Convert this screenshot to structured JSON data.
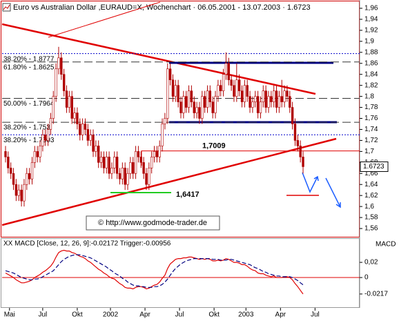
{
  "chart_data": [
    {
      "type": "candlestick",
      "title": "Euro vs Australian Dollar ,EURAUD=X, Wochenchart · 06.05.2001 - 13.07.2003 · 1.6723",
      "up_color": "#ffffff",
      "down_color": "#b00000",
      "xlim": [
        -1.3,
        133.3
      ],
      "ylim": [
        1.545,
        1.9713
      ],
      "yticks": [
        {
          "value": 1.96,
          "label": "1,96"
        },
        {
          "value": 1.94,
          "label": "1,94"
        },
        {
          "value": 1.92,
          "label": "1,92"
        },
        {
          "value": 1.9,
          "label": "1,9"
        },
        {
          "value": 1.88,
          "label": "1,88"
        },
        {
          "value": 1.86,
          "label": "1,86"
        },
        {
          "value": 1.84,
          "label": "1,84"
        },
        {
          "value": 1.82,
          "label": "1,82"
        },
        {
          "value": 1.8,
          "label": "1,8"
        },
        {
          "value": 1.78,
          "label": "1,78"
        },
        {
          "value": 1.76,
          "label": "1,76"
        },
        {
          "value": 1.74,
          "label": "1,74"
        },
        {
          "value": 1.72,
          "label": "1,72"
        },
        {
          "value": 1.7,
          "label": "1,7"
        },
        {
          "value": 1.68,
          "label": "1,68"
        },
        {
          "value": 1.66,
          "label": "1,66"
        },
        {
          "value": 1.64,
          "label": "1,64"
        },
        {
          "value": 1.62,
          "label": "1,62"
        },
        {
          "value": 1.6,
          "label": "1,6"
        },
        {
          "value": 1.58,
          "label": "1,58"
        },
        {
          "value": 1.56,
          "label": "1,56"
        }
      ],
      "levels": [
        {
          "value": 1.8777,
          "label": "38.20% - 1.8777",
          "dash": "dotted"
        },
        {
          "value": 1.8625,
          "label": "61.80% - 1.8625",
          "dash": "dashed"
        },
        {
          "value": 1.7964,
          "label": "50.00% - 1.7964",
          "dash": "dashed"
        },
        {
          "value": 1.753,
          "label": "38.20% - 1.753",
          "dash": "dashed"
        },
        {
          "value": 1.7303,
          "label": "38.20% - 1.7303",
          "dash": "dotted"
        }
      ],
      "break_level": {
        "value": 1.7009,
        "label": "1,7009",
        "color": "#e00000"
      },
      "low_label": "1,6417",
      "last_label": "1.6723",
      "copyright": "© http://www.godmode-trader.de",
      "candles": [
        [
          1.7,
          1.71,
          1.68,
          1.69
        ],
        [
          1.69,
          1.7,
          1.66,
          1.67
        ],
        [
          1.67,
          1.68,
          1.65,
          1.66
        ],
        [
          1.66,
          1.67,
          1.63,
          1.64
        ],
        [
          1.64,
          1.65,
          1.61,
          1.62
        ],
        [
          1.62,
          1.64,
          1.61,
          1.63
        ],
        [
          1.63,
          1.64,
          1.6,
          1.61
        ],
        [
          1.61,
          1.65,
          1.6,
          1.64
        ],
        [
          1.64,
          1.67,
          1.63,
          1.66
        ],
        [
          1.66,
          1.67,
          1.64,
          1.65
        ],
        [
          1.65,
          1.69,
          1.64,
          1.68
        ],
        [
          1.68,
          1.71,
          1.67,
          1.7
        ],
        [
          1.7,
          1.71,
          1.68,
          1.69
        ],
        [
          1.69,
          1.72,
          1.68,
          1.71
        ],
        [
          1.71,
          1.74,
          1.7,
          1.73
        ],
        [
          1.73,
          1.74,
          1.71,
          1.72
        ],
        [
          1.72,
          1.75,
          1.71,
          1.74
        ],
        [
          1.74,
          1.77,
          1.73,
          1.76
        ],
        [
          1.76,
          1.81,
          1.75,
          1.8
        ],
        [
          1.8,
          1.86,
          1.79,
          1.85
        ],
        [
          1.85,
          1.89,
          1.84,
          1.87
        ],
        [
          1.87,
          1.88,
          1.83,
          1.84
        ],
        [
          1.84,
          1.85,
          1.8,
          1.81
        ],
        [
          1.81,
          1.82,
          1.77,
          1.78
        ],
        [
          1.78,
          1.81,
          1.77,
          1.8
        ],
        [
          1.8,
          1.81,
          1.75,
          1.76
        ],
        [
          1.76,
          1.78,
          1.75,
          1.77
        ],
        [
          1.77,
          1.78,
          1.74,
          1.75
        ],
        [
          1.75,
          1.76,
          1.72,
          1.73
        ],
        [
          1.73,
          1.76,
          1.72,
          1.75
        ],
        [
          1.75,
          1.76,
          1.73,
          1.74
        ],
        [
          1.74,
          1.75,
          1.71,
          1.72
        ],
        [
          1.72,
          1.74,
          1.71,
          1.73
        ],
        [
          1.73,
          1.74,
          1.69,
          1.7
        ],
        [
          1.7,
          1.72,
          1.69,
          1.71
        ],
        [
          1.71,
          1.72,
          1.67,
          1.68
        ],
        [
          1.68,
          1.7,
          1.67,
          1.69
        ],
        [
          1.69,
          1.7,
          1.66,
          1.67
        ],
        [
          1.67,
          1.7,
          1.66,
          1.69
        ],
        [
          1.69,
          1.7,
          1.65,
          1.66
        ],
        [
          1.66,
          1.68,
          1.65,
          1.67
        ],
        [
          1.67,
          1.7,
          1.66,
          1.69
        ],
        [
          1.69,
          1.7,
          1.65,
          1.66
        ],
        [
          1.66,
          1.67,
          1.64,
          1.65
        ],
        [
          1.65,
          1.68,
          1.64,
          1.67
        ],
        [
          1.67,
          1.68,
          1.63,
          1.64
        ],
        [
          1.64,
          1.67,
          1.63,
          1.66
        ],
        [
          1.66,
          1.69,
          1.65,
          1.68
        ],
        [
          1.68,
          1.69,
          1.65,
          1.66
        ],
        [
          1.66,
          1.71,
          1.65,
          1.7
        ],
        [
          1.7,
          1.71,
          1.68,
          1.69
        ],
        [
          1.69,
          1.7,
          1.67,
          1.68
        ],
        [
          1.68,
          1.69,
          1.65,
          1.66
        ],
        [
          1.66,
          1.67,
          1.63,
          1.64
        ],
        [
          1.64,
          1.68,
          1.63,
          1.67
        ],
        [
          1.67,
          1.7,
          1.66,
          1.69
        ],
        [
          1.69,
          1.71,
          1.68,
          1.7
        ],
        [
          1.7,
          1.71,
          1.68,
          1.69
        ],
        [
          1.69,
          1.72,
          1.68,
          1.71
        ],
        [
          1.71,
          1.76,
          1.7,
          1.75
        ],
        [
          1.75,
          1.77,
          1.74,
          1.76
        ],
        [
          1.76,
          1.86,
          1.75,
          1.85
        ],
        [
          1.85,
          1.86,
          1.82,
          1.83
        ],
        [
          1.83,
          1.84,
          1.79,
          1.8
        ],
        [
          1.8,
          1.83,
          1.79,
          1.82
        ],
        [
          1.82,
          1.83,
          1.78,
          1.79
        ],
        [
          1.79,
          1.8,
          1.76,
          1.77
        ],
        [
          1.77,
          1.81,
          1.76,
          1.8
        ],
        [
          1.8,
          1.81,
          1.77,
          1.78
        ],
        [
          1.78,
          1.82,
          1.77,
          1.81
        ],
        [
          1.81,
          1.82,
          1.78,
          1.79
        ],
        [
          1.79,
          1.8,
          1.76,
          1.77
        ],
        [
          1.77,
          1.79,
          1.76,
          1.78
        ],
        [
          1.78,
          1.79,
          1.75,
          1.76
        ],
        [
          1.76,
          1.81,
          1.75,
          1.8
        ],
        [
          1.8,
          1.81,
          1.77,
          1.78
        ],
        [
          1.78,
          1.82,
          1.77,
          1.81
        ],
        [
          1.81,
          1.82,
          1.78,
          1.79
        ],
        [
          1.79,
          1.8,
          1.76,
          1.77
        ],
        [
          1.77,
          1.81,
          1.76,
          1.8
        ],
        [
          1.8,
          1.83,
          1.79,
          1.82
        ],
        [
          1.82,
          1.83,
          1.8,
          1.81
        ],
        [
          1.81,
          1.85,
          1.8,
          1.84
        ],
        [
          1.84,
          1.88,
          1.83,
          1.86
        ],
        [
          1.86,
          1.87,
          1.82,
          1.83
        ],
        [
          1.83,
          1.84,
          1.81,
          1.82
        ],
        [
          1.82,
          1.83,
          1.79,
          1.8
        ],
        [
          1.8,
          1.86,
          1.79,
          1.83
        ],
        [
          1.83,
          1.84,
          1.8,
          1.81
        ],
        [
          1.81,
          1.82,
          1.78,
          1.79
        ],
        [
          1.79,
          1.83,
          1.78,
          1.82
        ],
        [
          1.82,
          1.83,
          1.79,
          1.8
        ],
        [
          1.8,
          1.81,
          1.77,
          1.78
        ],
        [
          1.78,
          1.8,
          1.77,
          1.79
        ],
        [
          1.79,
          1.81,
          1.78,
          1.8
        ],
        [
          1.8,
          1.81,
          1.76,
          1.77
        ],
        [
          1.77,
          1.8,
          1.76,
          1.79
        ],
        [
          1.79,
          1.82,
          1.78,
          1.81
        ],
        [
          1.81,
          1.82,
          1.77,
          1.78
        ],
        [
          1.78,
          1.81,
          1.77,
          1.8
        ],
        [
          1.8,
          1.81,
          1.78,
          1.79
        ],
        [
          1.79,
          1.82,
          1.78,
          1.81
        ],
        [
          1.81,
          1.82,
          1.77,
          1.78
        ],
        [
          1.78,
          1.81,
          1.77,
          1.8
        ],
        [
          1.8,
          1.83,
          1.78,
          1.79
        ],
        [
          1.79,
          1.82,
          1.78,
          1.81
        ],
        [
          1.81,
          1.82,
          1.79,
          1.8
        ],
        [
          1.8,
          1.81,
          1.77,
          1.78
        ],
        [
          1.78,
          1.79,
          1.74,
          1.75
        ],
        [
          1.75,
          1.76,
          1.71,
          1.72
        ],
        [
          1.72,
          1.73,
          1.7,
          1.71
        ],
        [
          1.71,
          1.72,
          1.68,
          1.69
        ],
        [
          1.69,
          1.7,
          1.66,
          1.6723
        ]
      ]
    },
    {
      "type": "line",
      "title": "XX MACD [Close, 12, 26, 9]:-0.02172  Trigger:-0.00956",
      "y_label": "MACD",
      "zero_line": "#e00000",
      "xlim": [
        -1.3,
        133.3
      ],
      "xticks": [
        {
          "value": 1.5,
          "label": "Mai"
        },
        {
          "value": 14,
          "label": "Jul"
        },
        {
          "value": 27,
          "label": "Okt"
        },
        {
          "value": 39.5,
          "label": "2002"
        },
        {
          "value": 52.5,
          "label": "Apr"
        },
        {
          "value": 65.5,
          "label": "Jul"
        },
        {
          "value": 78.5,
          "label": "Okt"
        },
        {
          "value": 90.5,
          "label": "2003"
        },
        {
          "value": 103.5,
          "label": "Apr"
        },
        {
          "value": 116.5,
          "label": "Jul"
        }
      ],
      "ylim": [
        -0.04,
        0.051
      ],
      "yticks": [
        {
          "value": 0.02,
          "label": "0,02"
        },
        0,
        {
          "value": -0.0217,
          "label": "-0.0217"
        }
      ],
      "series": [
        {
          "color": "#e00000",
          "dash": false,
          "values": [
            0.006,
            0.004,
            0.002,
            0.0,
            -0.003,
            -0.005,
            -0.007,
            -0.007,
            -0.006,
            -0.005,
            -0.003,
            0.0,
            0.002,
            0.004,
            0.007,
            0.009,
            0.012,
            0.015,
            0.02,
            0.027,
            0.033,
            0.035,
            0.036,
            0.035,
            0.035,
            0.033,
            0.032,
            0.03,
            0.028,
            0.027,
            0.025,
            0.022,
            0.02,
            0.017,
            0.014,
            0.011,
            0.009,
            0.006,
            0.004,
            0.001,
            -0.001,
            -0.002,
            -0.005,
            -0.008,
            -0.01,
            -0.013,
            -0.014,
            -0.014,
            -0.015,
            -0.013,
            -0.012,
            -0.012,
            -0.013,
            -0.015,
            -0.014,
            -0.012,
            -0.01,
            -0.009,
            -0.006,
            -0.001,
            0.003,
            0.012,
            0.018,
            0.021,
            0.024,
            0.025,
            0.025,
            0.026,
            0.026,
            0.027,
            0.027,
            0.026,
            0.025,
            0.024,
            0.025,
            0.024,
            0.025,
            0.024,
            0.022,
            0.022,
            0.023,
            0.022,
            0.023,
            0.025,
            0.024,
            0.022,
            0.02,
            0.02,
            0.019,
            0.017,
            0.017,
            0.015,
            0.012,
            0.01,
            0.009,
            0.006,
            0.005,
            0.005,
            0.003,
            0.002,
            0.001,
            0.002,
            0.0,
            0.0,
            0.0,
            0.001,
            0.001,
            0.0,
            -0.003,
            -0.008,
            -0.012,
            -0.017,
            -0.02172
          ]
        },
        {
          "color": "#000080",
          "dash": true,
          "values": [
            0.009,
            0.008,
            0.007,
            0.006,
            0.004,
            0.002,
            0.0,
            -0.001,
            -0.002,
            -0.003,
            -0.003,
            -0.002,
            -0.002,
            -0.001,
            0.001,
            0.003,
            0.005,
            0.007,
            0.009,
            0.013,
            0.017,
            0.021,
            0.024,
            0.026,
            0.028,
            0.029,
            0.03,
            0.03,
            0.03,
            0.029,
            0.028,
            0.027,
            0.026,
            0.024,
            0.022,
            0.02,
            0.018,
            0.016,
            0.014,
            0.011,
            0.009,
            0.006,
            0.004,
            0.002,
            -0.001,
            -0.003,
            -0.006,
            -0.008,
            -0.01,
            -0.011,
            -0.011,
            -0.012,
            -0.012,
            -0.013,
            -0.013,
            -0.013,
            -0.012,
            -0.012,
            -0.011,
            -0.009,
            -0.006,
            -0.002,
            0.003,
            0.008,
            0.012,
            0.015,
            0.018,
            0.02,
            0.022,
            0.023,
            0.024,
            0.025,
            0.025,
            0.025,
            0.025,
            0.025,
            0.025,
            0.025,
            0.024,
            0.024,
            0.024,
            0.023,
            0.023,
            0.023,
            0.024,
            0.024,
            0.023,
            0.022,
            0.021,
            0.02,
            0.019,
            0.018,
            0.017,
            0.015,
            0.013,
            0.012,
            0.01,
            0.008,
            0.007,
            0.005,
            0.004,
            0.003,
            0.002,
            0.002,
            0.001,
            0.001,
            0.001,
            0.001,
            0.0,
            -0.002,
            -0.004,
            -0.007,
            -0.00956
          ]
        }
      ]
    }
  ]
}
